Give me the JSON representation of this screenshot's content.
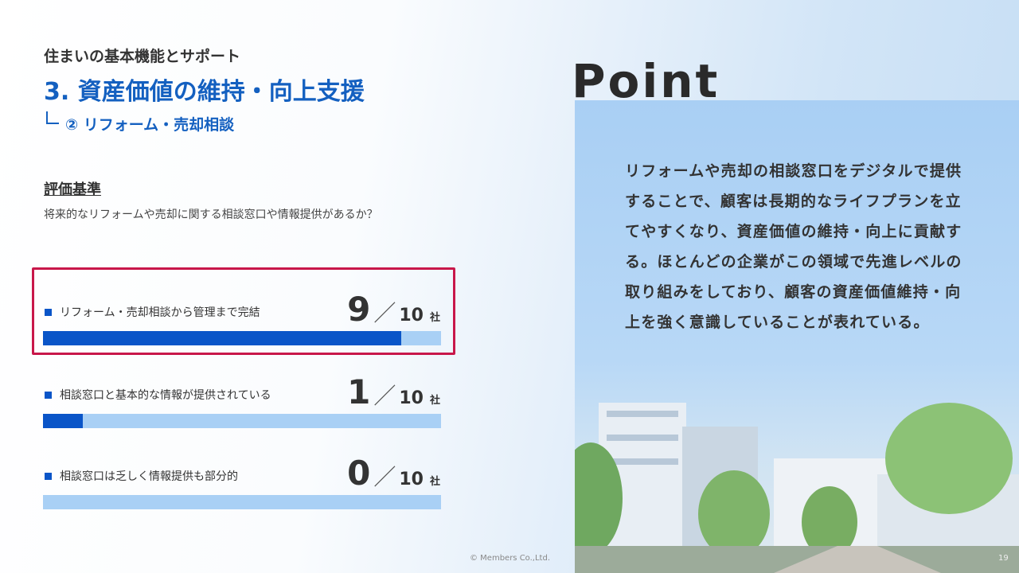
{
  "header": {
    "category": "住まいの基本機能とサポート",
    "title": "3. 資産価値の維持・向上支援",
    "subtitle": "② リフォーム・売却相談"
  },
  "criteria": {
    "heading": "評価基準",
    "question": "将来的なリフォームや売却に関する相談窓口や情報提供があるか？"
  },
  "items": [
    {
      "label": "リフォーム・売却相談から管理まで完結",
      "count": 9,
      "separator": "／",
      "total": 10,
      "unit": "社",
      "highlighted": true
    },
    {
      "label": "相談窓口と基本的な情報が提供されている",
      "count": 1,
      "separator": "／",
      "total": 10,
      "unit": "社",
      "highlighted": false
    },
    {
      "label": "相談窓口は乏しく情報提供も部分的",
      "count": 0,
      "separator": "／",
      "total": 10,
      "unit": "社",
      "highlighted": false
    }
  ],
  "point": {
    "title": "Point",
    "body": "リフォームや売却の相談窓口をデジタルで提供することで、顧客は長期的なライフプランを立てやすくなり、資産価値の維持・向上に貢献する。ほとんどの企業がこの領域で先進レベルの取り組みをしており、顧客の資産価値維持・向上を強く意識していることが表れている。"
  },
  "footer": {
    "copyright": "© Members Co.,Ltd.",
    "page": "19"
  }
}
